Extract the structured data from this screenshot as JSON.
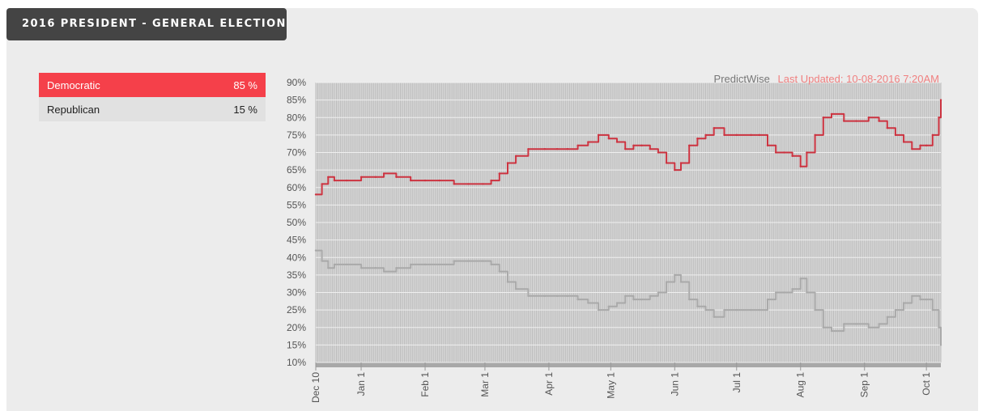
{
  "header": {
    "title": "2016 PRESIDENT - GENERAL ELECTION"
  },
  "legend": {
    "rows": [
      {
        "party": "Democratic",
        "value": "85 %"
      },
      {
        "party": "Republican",
        "value": "15 %"
      }
    ]
  },
  "source": {
    "name": "PredictWise",
    "updated": "Last Updated: 10-08-2016 7:20AM"
  },
  "colors": {
    "democratic": "#cc3340",
    "republican": "#a9a9a9",
    "plot_bg": "#d5d5d5",
    "updated_text": "#f08080",
    "accent_row": "#f5404a"
  },
  "chart_data": {
    "type": "line",
    "title": "",
    "xlabel": "",
    "ylabel": "",
    "x_range": [
      "2015-12-10",
      "2016-10-08"
    ],
    "ylim": [
      10,
      90
    ],
    "y_ticks": [
      10,
      15,
      20,
      25,
      30,
      35,
      40,
      45,
      50,
      55,
      60,
      65,
      70,
      75,
      80,
      85,
      90
    ],
    "y_tick_labels": [
      "10%",
      "15%",
      "20%",
      "25%",
      "30%",
      "35%",
      "40%",
      "45%",
      "50%",
      "55%",
      "60%",
      "65%",
      "70%",
      "75%",
      "80%",
      "85%",
      "90%"
    ],
    "x_ticks": [
      {
        "label": "Dec 10",
        "date": "2015-12-10"
      },
      {
        "label": "Jan 1",
        "date": "2016-01-01"
      },
      {
        "label": "Feb 1",
        "date": "2016-02-01"
      },
      {
        "label": "Mar 1",
        "date": "2016-03-01"
      },
      {
        "label": "Apr 1",
        "date": "2016-04-01"
      },
      {
        "label": "May 1",
        "date": "2016-05-01"
      },
      {
        "label": "Jun 1",
        "date": "2016-06-01"
      },
      {
        "label": "Jul 1",
        "date": "2016-07-01"
      },
      {
        "label": "Aug 1",
        "date": "2016-08-01"
      },
      {
        "label": "Sep 1",
        "date": "2016-09-01"
      },
      {
        "label": "Oct 1",
        "date": "2016-10-01"
      }
    ],
    "grid": true,
    "series": [
      {
        "name": "Democratic",
        "x": [
          "2015-12-10",
          "2015-12-13",
          "2015-12-16",
          "2015-12-19",
          "2015-12-25",
          "2016-01-01",
          "2016-01-08",
          "2016-01-12",
          "2016-01-18",
          "2016-01-25",
          "2016-02-01",
          "2016-02-08",
          "2016-02-15",
          "2016-02-22",
          "2016-02-29",
          "2016-03-04",
          "2016-03-08",
          "2016-03-12",
          "2016-03-16",
          "2016-03-22",
          "2016-03-30",
          "2016-04-05",
          "2016-04-10",
          "2016-04-15",
          "2016-04-20",
          "2016-04-25",
          "2016-04-30",
          "2016-05-04",
          "2016-05-08",
          "2016-05-12",
          "2016-05-16",
          "2016-05-20",
          "2016-05-24",
          "2016-05-28",
          "2016-06-01",
          "2016-06-04",
          "2016-06-08",
          "2016-06-12",
          "2016-06-16",
          "2016-06-20",
          "2016-06-25",
          "2016-07-01",
          "2016-07-08",
          "2016-07-12",
          "2016-07-16",
          "2016-07-20",
          "2016-07-24",
          "2016-07-28",
          "2016-08-01",
          "2016-08-04",
          "2016-08-08",
          "2016-08-12",
          "2016-08-16",
          "2016-08-22",
          "2016-08-28",
          "2016-09-03",
          "2016-09-08",
          "2016-09-12",
          "2016-09-16",
          "2016-09-20",
          "2016-09-24",
          "2016-09-28",
          "2016-10-01",
          "2016-10-04",
          "2016-10-07",
          "2016-10-08"
        ],
        "values": [
          58,
          61,
          63,
          62,
          62,
          63,
          63,
          64,
          63,
          62,
          62,
          62,
          61,
          61,
          61,
          62,
          64,
          67,
          69,
          71,
          71,
          71,
          71,
          72,
          73,
          75,
          74,
          73,
          71,
          72,
          72,
          71,
          70,
          67,
          65,
          67,
          72,
          74,
          75,
          77,
          75,
          75,
          75,
          75,
          72,
          70,
          70,
          69,
          66,
          70,
          75,
          80,
          81,
          79,
          79,
          80,
          79,
          77,
          75,
          73,
          71,
          72,
          72,
          75,
          80,
          85
        ]
      },
      {
        "name": "Republican",
        "x": [
          "2015-12-10",
          "2015-12-13",
          "2015-12-16",
          "2015-12-19",
          "2015-12-25",
          "2016-01-01",
          "2016-01-08",
          "2016-01-12",
          "2016-01-18",
          "2016-01-25",
          "2016-02-01",
          "2016-02-08",
          "2016-02-15",
          "2016-02-22",
          "2016-02-29",
          "2016-03-04",
          "2016-03-08",
          "2016-03-12",
          "2016-03-16",
          "2016-03-22",
          "2016-03-30",
          "2016-04-05",
          "2016-04-10",
          "2016-04-15",
          "2016-04-20",
          "2016-04-25",
          "2016-04-30",
          "2016-05-04",
          "2016-05-08",
          "2016-05-12",
          "2016-05-16",
          "2016-05-20",
          "2016-05-24",
          "2016-05-28",
          "2016-06-01",
          "2016-06-04",
          "2016-06-08",
          "2016-06-12",
          "2016-06-16",
          "2016-06-20",
          "2016-06-25",
          "2016-07-01",
          "2016-07-08",
          "2016-07-12",
          "2016-07-16",
          "2016-07-20",
          "2016-07-24",
          "2016-07-28",
          "2016-08-01",
          "2016-08-04",
          "2016-08-08",
          "2016-08-12",
          "2016-08-16",
          "2016-08-22",
          "2016-08-28",
          "2016-09-03",
          "2016-09-08",
          "2016-09-12",
          "2016-09-16",
          "2016-09-20",
          "2016-09-24",
          "2016-09-28",
          "2016-10-01",
          "2016-10-04",
          "2016-10-07",
          "2016-10-08"
        ],
        "values": [
          42,
          39,
          37,
          38,
          38,
          37,
          37,
          36,
          37,
          38,
          38,
          38,
          39,
          39,
          39,
          38,
          36,
          33,
          31,
          29,
          29,
          29,
          29,
          28,
          27,
          25,
          26,
          27,
          29,
          28,
          28,
          29,
          30,
          33,
          35,
          33,
          28,
          26,
          25,
          23,
          25,
          25,
          25,
          25,
          28,
          30,
          30,
          31,
          34,
          30,
          25,
          20,
          19,
          21,
          21,
          20,
          21,
          23,
          25,
          27,
          29,
          28,
          28,
          25,
          20,
          15
        ]
      }
    ]
  }
}
